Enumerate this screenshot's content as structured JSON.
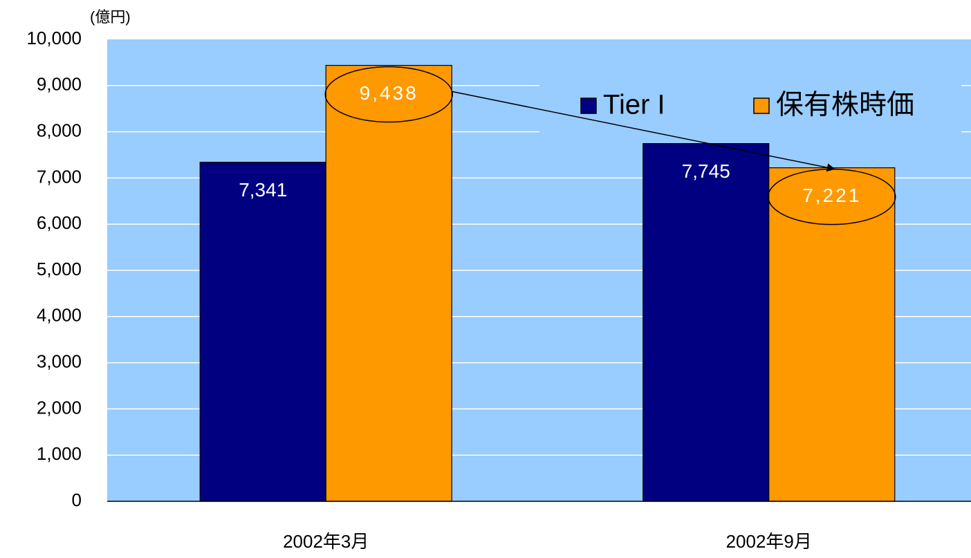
{
  "chart_data": {
    "type": "bar",
    "y_axis_label": "(億円)",
    "categories": [
      "2002年3月",
      "2002年9月"
    ],
    "series": [
      {
        "name": "Tier I",
        "color": "#000080",
        "values": [
          7341,
          7745
        ],
        "value_labels": [
          "7,341",
          "7,745"
        ]
      },
      {
        "name": "保有株時価",
        "color": "#ff9900",
        "values": [
          9438,
          7221
        ],
        "value_labels": [
          "9,438",
          "7,221"
        ]
      }
    ],
    "ylim": [
      0,
      10000
    ],
    "yticks": [
      0,
      {
        "value": 1000,
        "label": "1,000"
      },
      {
        "value": 2000,
        "label": "2,000"
      },
      {
        "value": 3000,
        "label": "3,000"
      },
      {
        "value": 4000,
        "label": "4,000"
      },
      {
        "value": 5000,
        "label": "5,000"
      },
      {
        "value": 6000,
        "label": "6,000"
      },
      {
        "value": 7000,
        "label": "7,000"
      },
      {
        "value": 8000,
        "label": "8,000"
      },
      {
        "value": 9000,
        "label": "9,000"
      },
      {
        "value": 10000,
        "label": "10,000"
      }
    ],
    "grid": true,
    "legend": "top-right",
    "plot_background": "#99ccff"
  }
}
